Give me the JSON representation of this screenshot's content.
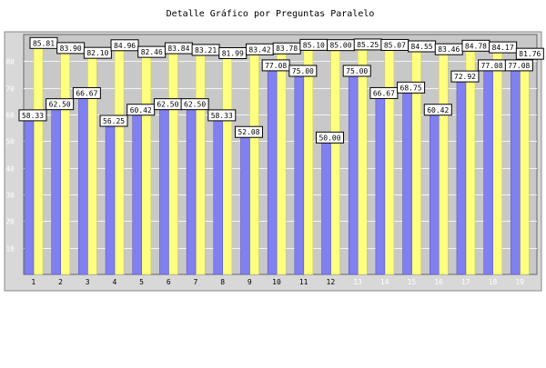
{
  "chart_data": {
    "type": "bar",
    "title": "Detalle Gráfico por Preguntas Paralelo",
    "xlabel": "",
    "ylabel": "",
    "ylim": [
      0,
      90
    ],
    "yticks": [
      10,
      20,
      30,
      40,
      50,
      60,
      70,
      80
    ],
    "grid": true,
    "legend": "none",
    "categories": [
      "1",
      "2",
      "3",
      "4",
      "5",
      "6",
      "7",
      "8",
      "9",
      "10",
      "11",
      "12",
      "13",
      "14",
      "15",
      "16",
      "17",
      "18",
      "19"
    ],
    "series": [
      {
        "color": "#8080f0",
        "values": [
          58.33,
          62.5,
          66.67,
          56.25,
          60.42,
          62.5,
          62.5,
          58.33,
          52.08,
          77.08,
          75.0,
          50.0,
          75.0,
          66.67,
          68.75,
          60.42,
          72.92,
          77.08,
          77.08
        ]
      },
      {
        "color": "#ffff80",
        "values": [
          85.81,
          83.9,
          82.1,
          84.96,
          82.46,
          83.84,
          83.21,
          81.99,
          83.42,
          83.78,
          85.1,
          85.0,
          85.25,
          85.07,
          84.55,
          83.46,
          84.78,
          84.17,
          81.76
        ]
      }
    ],
    "tick_label_colors": [
      "#000000",
      "#000000",
      "#000000",
      "#000000",
      "#000000",
      "#000000",
      "#000000",
      "#000000",
      "#000000",
      "#000000",
      "#000000",
      "#000000",
      "#ffffff",
      "#ffffff",
      "#ffffff",
      "#ffffff",
      "#ffffff",
      "#ffffff",
      "#ffffff"
    ]
  },
  "colors": {
    "plot_background": "#c8c8c8",
    "frame_background": "#d8d8d8",
    "label_box": "#ffffff"
  }
}
